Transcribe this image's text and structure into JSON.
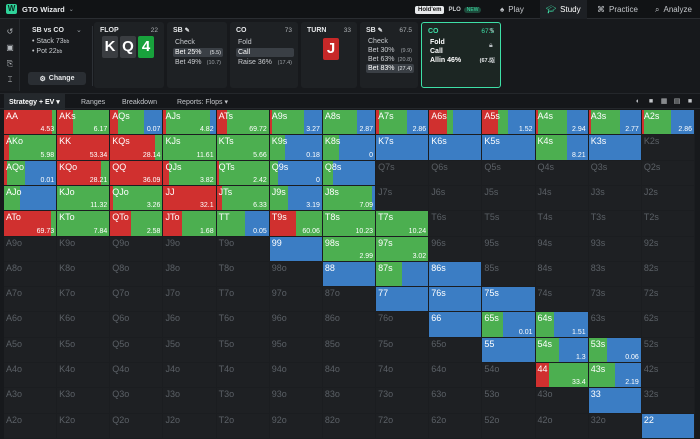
{
  "app": {
    "title": "GTO Wizard",
    "game_toggle": {
      "holdem": "Hold'em",
      "plo": "PLO",
      "plo_badge": "NEW"
    },
    "nav": [
      {
        "label": "Play",
        "icon": "spade-icon"
      },
      {
        "label": "Study",
        "icon": "graduation-cap-icon"
      },
      {
        "label": "Practice",
        "icon": "gamepad-icon"
      },
      {
        "label": "Analyze",
        "icon": "magnifier-icon"
      }
    ]
  },
  "spot": {
    "title": "SB vs CO",
    "stack_label": "Stack",
    "stack_value": "73",
    "stack_unit": "bb",
    "pot_label": "Pot",
    "pot_value": "22",
    "pot_unit": "bb",
    "change_label": "Change"
  },
  "flop": {
    "label": "FLOP",
    "pot": "22",
    "cards": [
      {
        "rank": "K",
        "color": "#3a3d41"
      },
      {
        "rank": "Q",
        "color": "#3a3d41"
      },
      {
        "rank": "4",
        "color": "#18a23c"
      }
    ]
  },
  "actions": [
    {
      "header": "SB",
      "pot": "",
      "options": [
        {
          "label": "Check",
          "size": "(5.5)",
          "selected": false
        },
        {
          "label": "Bet 25%",
          "size": "(5.5)",
          "selected": true
        },
        {
          "label": "Bet 49%",
          "size": "(10.7)",
          "selected": false
        }
      ]
    },
    {
      "header": "CO",
      "pot": "73",
      "options": [
        {
          "label": "Fold",
          "size": "",
          "selected": false
        },
        {
          "label": "Call",
          "size": "",
          "selected": true
        },
        {
          "label": "Raise 36%",
          "size": "(17.4)",
          "selected": false
        }
      ]
    }
  ],
  "turn": {
    "label": "TURN",
    "pot": "33",
    "card": "J"
  },
  "sb_turn": {
    "header": "SB",
    "pot": "67.5",
    "options": [
      {
        "label": "Check",
        "size": "",
        "selected": false
      },
      {
        "label": "Bet 30%",
        "size": "(9.9)",
        "selected": false
      },
      {
        "label": "Bet 63%",
        "size": "(20.8)",
        "selected": false
      },
      {
        "label": "Bet 83%",
        "size": "(27.4)",
        "selected": true
      }
    ]
  },
  "co_turn": {
    "header": "CO",
    "pot": "67.5",
    "options": [
      {
        "label": "Fold",
        "size": ""
      },
      {
        "label": "Call",
        "size": ""
      },
      {
        "label": "Allin 46%",
        "size": "(67.5)"
      }
    ]
  },
  "subtabs": [
    "Strategy + EV",
    "Ranges",
    "Breakdown",
    "Reports: Flops"
  ],
  "colors": {
    "fold": "#3b7dc4",
    "call": "#4caf50",
    "raise": "#d0302f",
    "empty": "#1e2023",
    "accent": "#3ee0a7"
  },
  "grid": [
    [
      "AA",
      "AKs",
      "AQs",
      "AJs",
      "ATs",
      "A9s",
      "A8s",
      "A7s",
      "A6s",
      "A5s",
      "A4s",
      "A3s",
      "A2s"
    ],
    [
      "AKo",
      "KK",
      "KQs",
      "KJs",
      "KTs",
      "K9s",
      "K8s",
      "K7s",
      "K6s",
      "K5s",
      "K4s",
      "K3s",
      "K2s"
    ],
    [
      "AQo",
      "KQo",
      "QQ",
      "QJs",
      "QTs",
      "Q9s",
      "Q8s",
      "Q7s",
      "Q6s",
      "Q5s",
      "Q4s",
      "Q3s",
      "Q2s"
    ],
    [
      "AJo",
      "KJo",
      "QJo",
      "JJ",
      "JTs",
      "J9s",
      "J8s",
      "J7s",
      "J6s",
      "J5s",
      "J4s",
      "J3s",
      "J2s"
    ],
    [
      "ATo",
      "KTo",
      "QTo",
      "JTo",
      "TT",
      "T9s",
      "T8s",
      "T7s",
      "T6s",
      "T5s",
      "T4s",
      "T3s",
      "T2s"
    ],
    [
      "A9o",
      "K9o",
      "Q9o",
      "J9o",
      "T9o",
      "99",
      "98s",
      "97s",
      "96s",
      "95s",
      "94s",
      "93s",
      "92s"
    ],
    [
      "A8o",
      "K8o",
      "Q8o",
      "J8o",
      "T8o",
      "98o",
      "88",
      "87s",
      "86s",
      "85s",
      "84s",
      "83s",
      "82s"
    ],
    [
      "A7o",
      "K7o",
      "Q7o",
      "J7o",
      "T7o",
      "97o",
      "87o",
      "77",
      "76s",
      "75s",
      "74s",
      "73s",
      "72s"
    ],
    [
      "A6o",
      "K6o",
      "Q6o",
      "J6o",
      "T6o",
      "96o",
      "86o",
      "76o",
      "66",
      "65s",
      "64s",
      "63s",
      "62s"
    ],
    [
      "A5o",
      "K5o",
      "Q5o",
      "J5o",
      "T5o",
      "95o",
      "85o",
      "75o",
      "65o",
      "55",
      "54s",
      "53s",
      "52s"
    ],
    [
      "A4o",
      "K4o",
      "Q4o",
      "J4o",
      "T4o",
      "94o",
      "84o",
      "74o",
      "64o",
      "54o",
      "44",
      "43s",
      "42s"
    ],
    [
      "A3o",
      "K3o",
      "Q3o",
      "J3o",
      "T3o",
      "93o",
      "83o",
      "73o",
      "63o",
      "53o",
      "43o",
      "33",
      "32s"
    ],
    [
      "A2o",
      "K2o",
      "Q2o",
      "J2o",
      "T2o",
      "92o",
      "82o",
      "72o",
      "62o",
      "52o",
      "42o",
      "32o",
      "22"
    ]
  ],
  "strategy": {
    "AA": {
      "raise": 0.93,
      "call": 0.07,
      "fold": 0,
      "ev": "4.53"
    },
    "AKs": {
      "raise": 0.3,
      "call": 0.7,
      "fold": 0,
      "ev": "6.17"
    },
    "AQs": {
      "raise": 0.15,
      "call": 0.5,
      "fold": 0.35,
      "ev": "0.07"
    },
    "AJs": {
      "raise": 0.05,
      "call": 0.85,
      "fold": 0.1,
      "ev": "4.82"
    },
    "ATs": {
      "raise": 0.2,
      "call": 0.8,
      "fold": 0,
      "ev": "69.72"
    },
    "A9s": {
      "raise": 0.05,
      "call": 0.6,
      "fold": 0.35,
      "ev": "3.27"
    },
    "A8s": {
      "raise": 0,
      "call": 0.65,
      "fold": 0.35,
      "ev": "2.87"
    },
    "A7s": {
      "raise": 0.05,
      "call": 0.55,
      "fold": 0.4,
      "ev": "2.86"
    },
    "A6s": {
      "raise": 0.35,
      "call": 0.1,
      "fold": 0.55,
      "ev": ""
    },
    "A5s": {
      "raise": 0.3,
      "call": 0.2,
      "fold": 0.5,
      "ev": "1.52"
    },
    "A4s": {
      "raise": 0.05,
      "call": 0.55,
      "fold": 0.4,
      "ev": "2.94"
    },
    "A3s": {
      "raise": 0.05,
      "call": 0.55,
      "fold": 0.4,
      "ev": "2.77"
    },
    "A2s": {
      "raise": 0.05,
      "call": 0.5,
      "fold": 0.45,
      "ev": "2.86"
    },
    "AKo": {
      "raise": 0.1,
      "call": 0.9,
      "fold": 0,
      "ev": "5.98"
    },
    "KK": {
      "raise": 1.0,
      "call": 0,
      "fold": 0,
      "ev": "53.34"
    },
    "KQs": {
      "raise": 0.85,
      "call": 0.15,
      "fold": 0,
      "ev": "28.14"
    },
    "KJs": {
      "raise": 0,
      "call": 1.0,
      "fold": 0,
      "ev": "11.61"
    },
    "KTs": {
      "raise": 0,
      "call": 1.0,
      "fold": 0,
      "ev": "5.66"
    },
    "K9s": {
      "raise": 0,
      "call": 0.3,
      "fold": 0.7,
      "ev": "0.18"
    },
    "K8s": {
      "raise": 0,
      "call": 0.3,
      "fold": 0.7,
      "ev": "0"
    },
    "K7s": {
      "raise": 0,
      "call": 0,
      "fold": 1.0,
      "ev": ""
    },
    "K6s": {
      "raise": 0,
      "call": 0,
      "fold": 1.0,
      "ev": ""
    },
    "K5s": {
      "raise": 0,
      "call": 0,
      "fold": 1.0,
      "ev": ""
    },
    "K4s": {
      "raise": 0,
      "call": 0.6,
      "fold": 0.4,
      "ev": "8.21"
    },
    "K3s": {
      "raise": 0,
      "call": 0,
      "fold": 1.0,
      "ev": ""
    },
    "K2s": {
      "raise": 0,
      "call": 0,
      "fold": 0,
      "ev": ""
    },
    "AQo": {
      "raise": 0.05,
      "call": 0.35,
      "fold": 0.6,
      "ev": "0.01"
    },
    "KQo": {
      "raise": 0.85,
      "call": 0.15,
      "fold": 0,
      "ev": "28.21"
    },
    "QQ": {
      "raise": 1.0,
      "call": 0,
      "fold": 0,
      "ev": "36.09"
    },
    "QJs": {
      "raise": 0.1,
      "call": 0.9,
      "fold": 0,
      "ev": "3.82"
    },
    "QTs": {
      "raise": 0.05,
      "call": 0.95,
      "fold": 0,
      "ev": "2.42"
    },
    "Q9s": {
      "raise": 0,
      "call": 0.15,
      "fold": 0.85,
      "ev": "0"
    },
    "Q8s": {
      "raise": 0,
      "call": 0.2,
      "fold": 0.8,
      "ev": ""
    },
    "AJo": {
      "raise": 0,
      "call": 0.3,
      "fold": 0.7,
      "ev": ""
    },
    "KJo": {
      "raise": 0,
      "call": 1.0,
      "fold": 0,
      "ev": "11.32"
    },
    "QJo": {
      "raise": 0.05,
      "call": 0.95,
      "fold": 0,
      "ev": "3.26"
    },
    "JJ": {
      "raise": 1.0,
      "call": 0,
      "fold": 0,
      "ev": "32.1"
    },
    "JTs": {
      "raise": 0.1,
      "call": 0.9,
      "fold": 0,
      "ev": "6.33"
    },
    "J9s": {
      "raise": 0,
      "call": 0.35,
      "fold": 0.65,
      "ev": "3.19"
    },
    "J8s": {
      "raise": 0,
      "call": 0.95,
      "fold": 0.05,
      "ev": "7.09"
    },
    "ATo": {
      "raise": 0.9,
      "call": 0.1,
      "fold": 0,
      "ev": "69.73"
    },
    "KTo": {
      "raise": 0,
      "call": 1.0,
      "fold": 0,
      "ev": "7.84"
    },
    "QTo": {
      "raise": 0.4,
      "call": 0.6,
      "fold": 0,
      "ev": "2.58"
    },
    "JTo": {
      "raise": 0.35,
      "call": 0.65,
      "fold": 0,
      "ev": "1.68"
    },
    "TT": {
      "raise": 0,
      "call": 0.55,
      "fold": 0.45,
      "ev": "0.05"
    },
    "T9s": {
      "raise": 0.5,
      "call": 0.5,
      "fold": 0,
      "ev": "60.06"
    },
    "T8s": {
      "raise": 0,
      "call": 1.0,
      "fold": 0,
      "ev": "10.23"
    },
    "T7s": {
      "raise": 0,
      "call": 1.0,
      "fold": 0,
      "ev": "10.24"
    },
    "99": {
      "raise": 0,
      "call": 0,
      "fold": 1.0,
      "ev": ""
    },
    "98s": {
      "raise": 0,
      "call": 1.0,
      "fold": 0,
      "ev": "2.99"
    },
    "97s": {
      "raise": 0,
      "call": 1.0,
      "fold": 0,
      "ev": "3.02"
    },
    "88": {
      "raise": 0,
      "call": 0,
      "fold": 1.0,
      "ev": ""
    },
    "87s": {
      "raise": 0,
      "call": 0.5,
      "fold": 0.5,
      "ev": ""
    },
    "86s": {
      "raise": 0,
      "call": 0,
      "fold": 1.0,
      "ev": ""
    },
    "77": {
      "raise": 0,
      "call": 0,
      "fold": 1.0,
      "ev": ""
    },
    "76s": {
      "raise": 0,
      "call": 0,
      "fold": 1.0,
      "ev": ""
    },
    "75s": {
      "raise": 0,
      "call": 0,
      "fold": 1.0,
      "ev": ""
    },
    "66": {
      "raise": 0,
      "call": 0,
      "fold": 1.0,
      "ev": ""
    },
    "65s": {
      "raise": 0,
      "call": 0.4,
      "fold": 0.6,
      "ev": "0.01"
    },
    "64s": {
      "raise": 0,
      "call": 0.35,
      "fold": 0.65,
      "ev": "1.51"
    },
    "55": {
      "raise": 0,
      "call": 0,
      "fold": 1.0,
      "ev": ""
    },
    "54s": {
      "raise": 0,
      "call": 0.45,
      "fold": 0.55,
      "ev": "1.3"
    },
    "53s": {
      "raise": 0,
      "call": 0.35,
      "fold": 0.65,
      "ev": "0.06"
    },
    "44": {
      "raise": 0.25,
      "call": 0.75,
      "fold": 0,
      "ev": "33.4"
    },
    "43s": {
      "raise": 0,
      "call": 0.5,
      "fold": 0.5,
      "ev": "2.19"
    },
    "33": {
      "raise": 0,
      "call": 0,
      "fold": 1.0,
      "ev": ""
    },
    "22": {
      "raise": 0,
      "call": 0,
      "fold": 1.0,
      "ev": ""
    }
  }
}
